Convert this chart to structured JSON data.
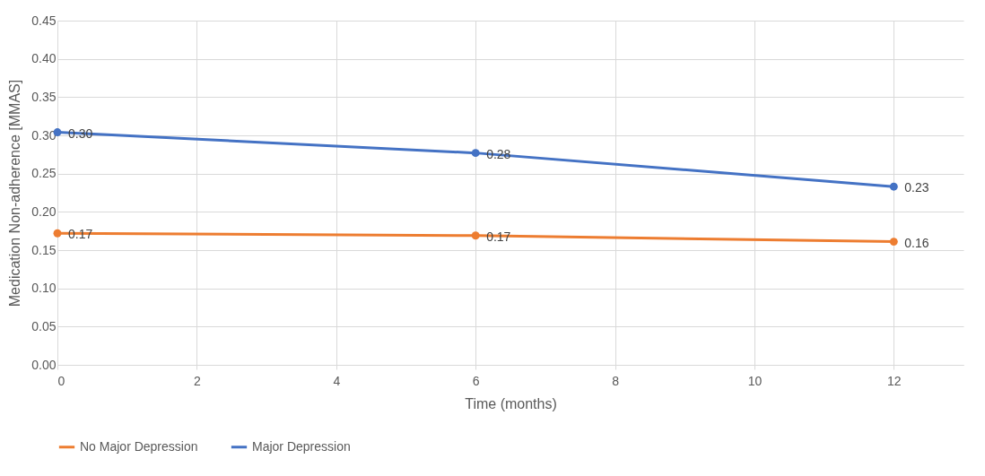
{
  "chart_data": {
    "type": "line",
    "xlabel": "Time (months)",
    "ylabel": "Medication Non-adherence [MMAS]",
    "x": [
      0,
      6,
      12
    ],
    "series": [
      {
        "name": "No Major Depression",
        "color": "#ed7d31",
        "values": [
          0.172,
          0.169,
          0.161
        ],
        "value_labels": [
          "0.17",
          "0.17",
          "0.16"
        ]
      },
      {
        "name": "Major Depression",
        "color": "#4472c4",
        "values": [
          0.304,
          0.277,
          0.233
        ],
        "value_labels": [
          "0.30",
          "0.28",
          "0.23"
        ]
      }
    ],
    "xlim": [
      0,
      13
    ],
    "xticks": [
      0,
      2,
      4,
      6,
      8,
      10,
      12
    ],
    "ylim": [
      0,
      0.45
    ],
    "yticks": [
      {
        "value": 0,
        "label": "0.00"
      },
      {
        "value": 0.05,
        "label": "0.05"
      },
      {
        "value": 0.1,
        "label": "0.10"
      },
      {
        "value": 0.15,
        "label": "0.15"
      },
      {
        "value": 0.2,
        "label": "0.20"
      },
      {
        "value": 0.25,
        "label": "0.25"
      },
      {
        "value": 0.3,
        "label": "0.30"
      },
      {
        "value": 0.35,
        "label": "0.35"
      },
      {
        "value": 0.4,
        "label": "0.40"
      },
      {
        "value": 0.45,
        "label": "0.45"
      }
    ],
    "grid": true,
    "legend": "bottom",
    "marker": "circle",
    "line_style": "solid"
  }
}
